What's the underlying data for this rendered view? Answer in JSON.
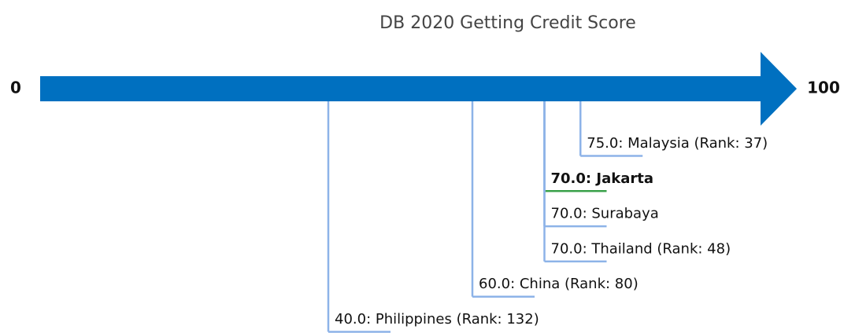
{
  "chart_data": {
    "type": "number-line",
    "title": "DB 2020 Getting Credit Score",
    "xlim": [
      0,
      100
    ],
    "xticks": [
      0,
      100
    ],
    "values": [
      75,
      70,
      70,
      70,
      60,
      40
    ],
    "value_labels": [
      "75.0: Malaysia (Rank: 37)",
      "70.0: Jakarta",
      "70.0: Surabaya",
      "70.0: Thailand (Rank: 48)",
      "60.0: China (Rank: 80)",
      "40.0: Philippines (Rank: 132)"
    ],
    "highlight": 1,
    "color": "#0070c0",
    "line_color": "#8db3e8",
    "highlight_color": "#3aa14a"
  }
}
